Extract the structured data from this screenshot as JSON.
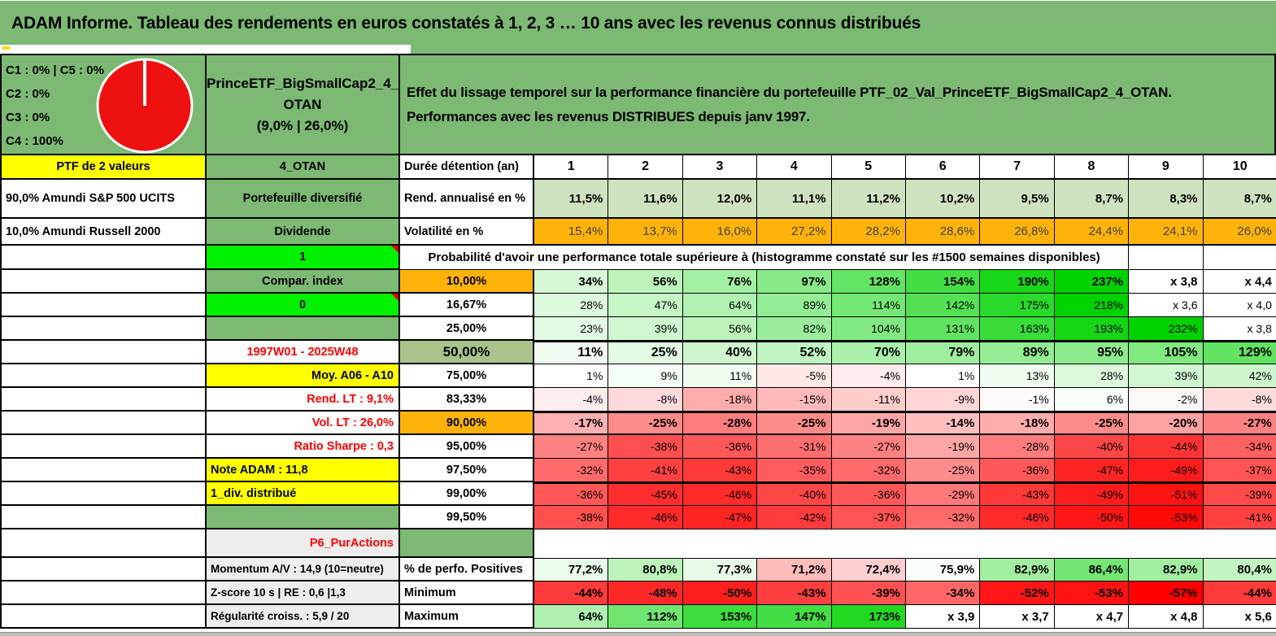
{
  "header": {
    "title": "ADAM Informe. Tableau des rendements en euros constatés à 1, 2, 3 … 10 ans avec les revenus connus distribués"
  },
  "composition_cell": {
    "lines": [
      "C1 : 0% | C5 : 0%",
      "C2 : 0%",
      "C3 : 0%",
      "C4 : 100%"
    ]
  },
  "portfolio_cell": {
    "lines": [
      "PrinceETF_BigSmallCap2_4_",
      "OTAN",
      "(9,0% | 26,0%)"
    ]
  },
  "description_cell": {
    "lines": [
      "Effet du lissage temporel sur la performance financière du portefeuille PTF_02_Val_PrinceETF_BigSmallCap2_4_OTAN.",
      "Performances avec les revenus DISTRIBUES depuis janv 1997."
    ]
  },
  "chart_data": {
    "type": "pie",
    "title": "Allocation du portefeuille",
    "labels": [
      "C1",
      "C2",
      "C3",
      "C4",
      "C5"
    ],
    "values": [
      0,
      0,
      0,
      100,
      0
    ],
    "slice_color": "#ee1111",
    "legend_position": "left"
  },
  "colors": {
    "banner_green": "#7cb973",
    "cell_green": "#7cb973",
    "bright_green": "#00f000",
    "orange": "#ffb30a",
    "yellow": "#ffff00",
    "olive": "#a9c38b",
    "sage": "#cfe2c0",
    "gray_label": "#ededed",
    "red_text": "#ff0000",
    "pie_red": "#ee1111",
    "vol_text": "#3f3f3f"
  },
  "table": {
    "rows": [
      {
        "id": "ptf",
        "a": "PTF de 2 valeurs",
        "b": "4_OTAN",
        "c": "Durée détention (an)",
        "cells": [
          "1",
          "2",
          "3",
          "4",
          "5",
          "6",
          "7",
          "8",
          "9",
          "10"
        ]
      },
      {
        "id": "rend",
        "a": "90,0% Amundi S&P 500 UCITS",
        "b": "Portefeuille diversifié",
        "c": "Rend. annualisé en %",
        "cells": [
          "11,5%",
          "11,6%",
          "12,0%",
          "11,1%",
          "11,2%",
          "10,2%",
          "9,5%",
          "8,7%",
          "8,3%",
          "8,7%"
        ]
      },
      {
        "id": "vol",
        "a": "10,0% Amundi Russell 2000",
        "b": "Dividende",
        "c": "Volatilité en %",
        "cells": [
          "15,4%",
          "13,7%",
          "16,0%",
          "27,2%",
          "28,2%",
          "28,6%",
          "26,8%",
          "24,4%",
          "24,1%",
          "26,0%"
        ]
      },
      {
        "id": "probhdr",
        "a": "",
        "b": "1",
        "span_text": "Probabilité d'avoir une performance totale supérieure à (histogramme constaté sur les #1500 semaines disponibles)",
        "trailing": [
          "",
          ""
        ]
      },
      {
        "id": "p10",
        "a": "",
        "b": "Compar. index",
        "c": "10,00%",
        "cells": [
          "34%",
          "56%",
          "76%",
          "97%",
          "128%",
          "154%",
          "190%",
          "237%",
          "x 3,8",
          "x 4,4"
        ]
      },
      {
        "id": "p1667",
        "a": "",
        "b": "0",
        "c": "16,67%",
        "cells": [
          "28%",
          "47%",
          "64%",
          "89%",
          "114%",
          "142%",
          "175%",
          "218%",
          "x 3,6",
          "x 4,0"
        ]
      },
      {
        "id": "p25",
        "a": "",
        "b": "",
        "c": "25,00%",
        "cells": [
          "23%",
          "39%",
          "56%",
          "82%",
          "104%",
          "131%",
          "163%",
          "193%",
          "232%",
          "x 3,8"
        ]
      },
      {
        "id": "p50",
        "a": "",
        "b": "1997W01 - 2025W48",
        "c": "50,00%",
        "cells": [
          "11%",
          "25%",
          "40%",
          "52%",
          "70%",
          "79%",
          "89%",
          "95%",
          "105%",
          "129%"
        ]
      },
      {
        "id": "p75",
        "a": "",
        "b": "Moy. A06 - A10",
        "c": "75,00%",
        "cells": [
          "1%",
          "9%",
          "11%",
          "-5%",
          "-4%",
          "1%",
          "13%",
          "28%",
          "39%",
          "42%"
        ]
      },
      {
        "id": "p8333",
        "a": "",
        "b": "Rend. LT : 9,1%",
        "c": "83,33%",
        "cells": [
          "-4%",
          "-8%",
          "-18%",
          "-15%",
          "-11%",
          "-9%",
          "-1%",
          "6%",
          "-2%",
          "-8%"
        ]
      },
      {
        "id": "p90",
        "a": "",
        "b": "Vol. LT : 26,0%",
        "c": "90,00%",
        "cells": [
          "-17%",
          "-25%",
          "-28%",
          "-25%",
          "-19%",
          "-14%",
          "-18%",
          "-25%",
          "-20%",
          "-27%"
        ]
      },
      {
        "id": "p95",
        "a": "",
        "b": "Ratio Sharpe : 0,3",
        "c": "95,00%",
        "cells": [
          "-27%",
          "-38%",
          "-36%",
          "-31%",
          "-27%",
          "-19%",
          "-28%",
          "-40%",
          "-44%",
          "-34%"
        ]
      },
      {
        "id": "p975",
        "a": "",
        "b": "Note ADAM : 11,8",
        "c": "97,50%",
        "cells": [
          "-32%",
          "-41%",
          "-43%",
          "-35%",
          "-32%",
          "-25%",
          "-36%",
          "-47%",
          "-49%",
          "-37%"
        ]
      },
      {
        "id": "p99",
        "a": "",
        "b": "1_div. distribué",
        "c": "99,00%",
        "cells": [
          "-36%",
          "-45%",
          "-46%",
          "-40%",
          "-36%",
          "-29%",
          "-43%",
          "-49%",
          "-51%",
          "-39%"
        ]
      },
      {
        "id": "p995",
        "a": "",
        "b": "",
        "c": "99,50%",
        "cells": [
          "-38%",
          "-46%",
          "-47%",
          "-42%",
          "-37%",
          "-32%",
          "-46%",
          "-50%",
          "-53%",
          "-41%"
        ]
      },
      {
        "id": "p6",
        "a": "",
        "b": "P6_PurActions",
        "c": "",
        "no_cells": true
      },
      {
        "id": "perf",
        "a": "",
        "b": "Momentum A/V : 14,9 (10=neutre)",
        "c": "% de perfo. Positives",
        "cells": [
          "77,2%",
          "80,8%",
          "77,3%",
          "71,2%",
          "72,4%",
          "75,9%",
          "82,9%",
          "86,4%",
          "82,9%",
          "80,4%"
        ]
      },
      {
        "id": "min",
        "a": "",
        "b": "Z-score 10 s | RE : 0,6 |1,3",
        "c": "Minimum",
        "cells": [
          "-44%",
          "-48%",
          "-50%",
          "-43%",
          "-39%",
          "-34%",
          "-52%",
          "-53%",
          "-57%",
          "-44%"
        ]
      },
      {
        "id": "max",
        "a": "",
        "b": "Régularité croiss. : 5,9 / 20",
        "c": "Maximum",
        "cells": [
          "64%",
          "112%",
          "153%",
          "147%",
          "173%",
          "x 3,9",
          "x 3,7",
          "x 4,7",
          "x 4,8",
          "x 5,6"
        ]
      }
    ]
  }
}
